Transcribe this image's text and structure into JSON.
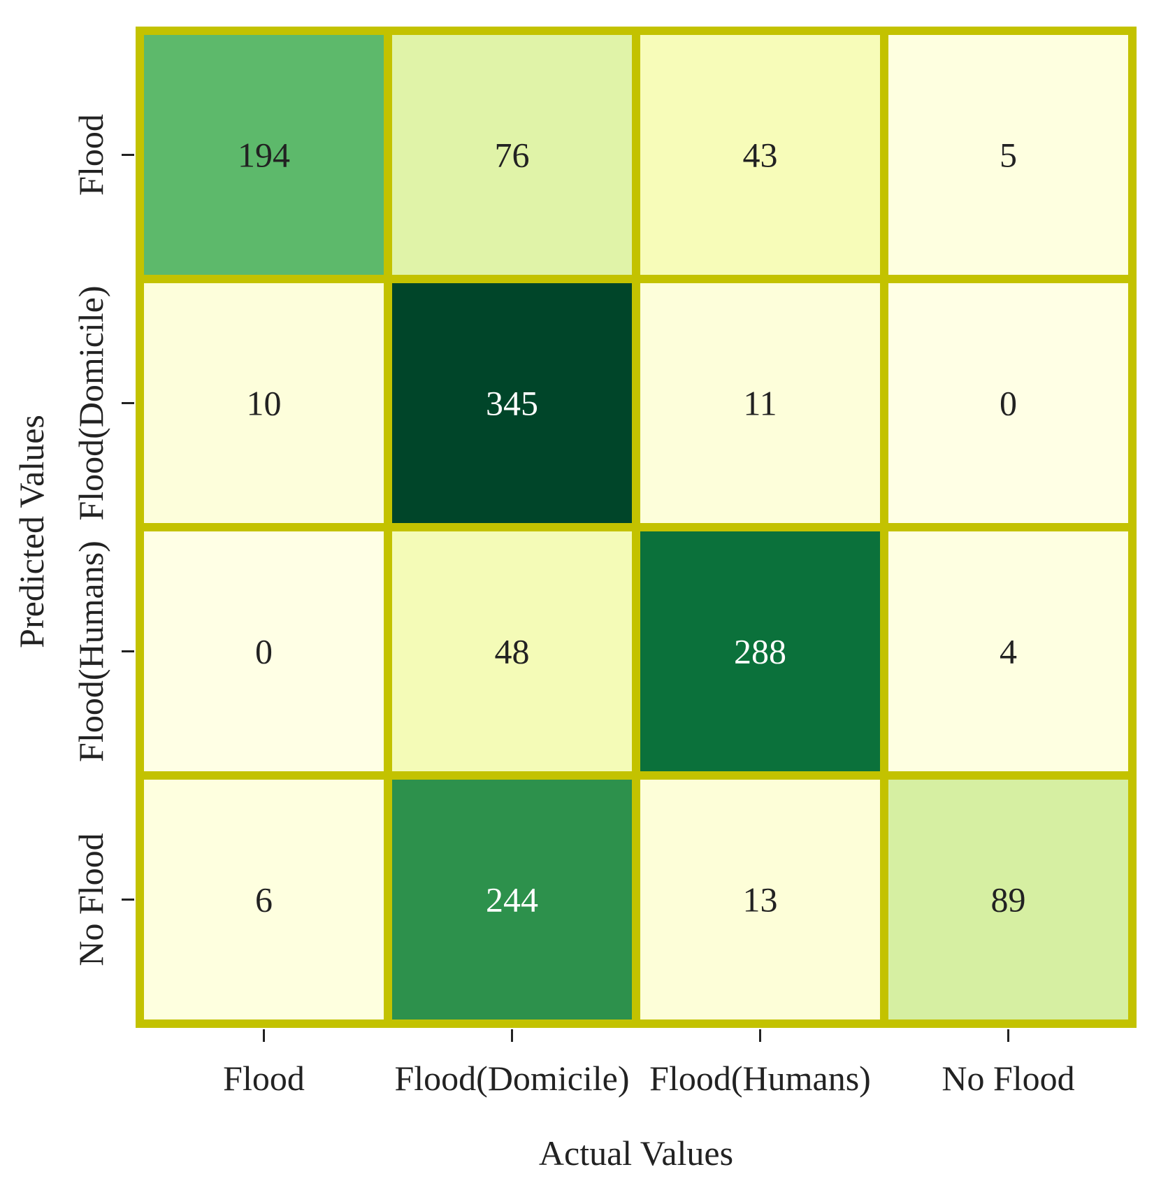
{
  "chart_data": {
    "type": "heatmap",
    "x_categories": [
      "Flood",
      "Flood(Domicile)",
      "Flood(Humans)",
      "No Flood"
    ],
    "y_categories": [
      "Flood",
      "Flood(Domicile)",
      "Flood(Humans)",
      "No Flood"
    ],
    "values": [
      [
        194,
        76,
        43,
        5
      ],
      [
        10,
        345,
        11,
        0
      ],
      [
        0,
        48,
        288,
        4
      ],
      [
        6,
        244,
        13,
        89
      ]
    ],
    "xlabel": "Actual Values",
    "ylabel": "Predicted Values",
    "value_range": [
      0,
      345
    ],
    "colormap": "YlGn",
    "colorbar": false,
    "cell_border_color": "#c3c200"
  }
}
